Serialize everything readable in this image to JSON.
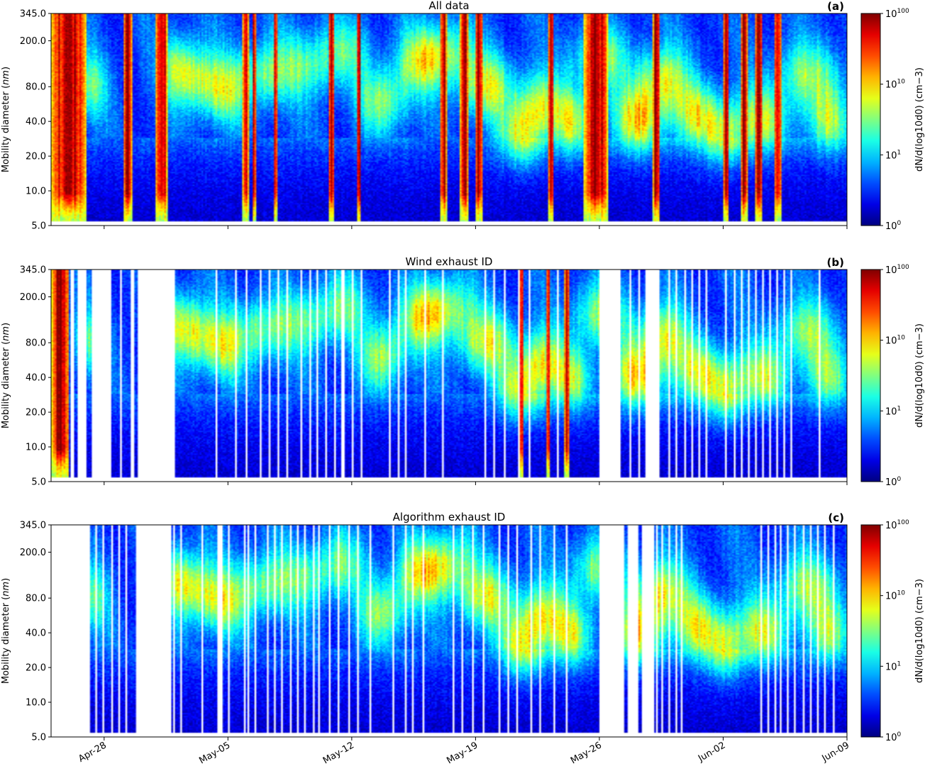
{
  "chart_data": {
    "type": "heatmap",
    "colormap": "jet",
    "x_axis": {
      "start": "2023-04-25",
      "end": "2023-06-09",
      "ticks": [
        {
          "date": "2023-04-28",
          "label": "Apr-28"
        },
        {
          "date": "2023-05-05",
          "label": "May-05"
        },
        {
          "date": "2023-05-12",
          "label": "May-12"
        },
        {
          "date": "2023-05-19",
          "label": "May-19"
        },
        {
          "date": "2023-05-26",
          "label": "May-26"
        },
        {
          "date": "2023-06-02",
          "label": "Jun-02"
        },
        {
          "date": "2023-06-09",
          "label": "Jun-09"
        }
      ]
    },
    "y_axis": {
      "label_prefix": "Mobility diameter (",
      "label_unit": "nm",
      "label_suffix": ")",
      "scale": "log",
      "range": [
        5.0,
        345.0
      ],
      "ticks": [
        {
          "value": 5.0,
          "label": "5.0"
        },
        {
          "value": 10.0,
          "label": "10.0"
        },
        {
          "value": 20.0,
          "label": "20.0"
        },
        {
          "value": 40.0,
          "label": "40.0"
        },
        {
          "value": 80.0,
          "label": "80.0"
        },
        {
          "value": 200.0,
          "label": "200.0"
        },
        {
          "value": 345.0,
          "label": "345.0"
        }
      ]
    },
    "colorbar": {
      "label": "dN/d(log10d0) (cm−3)",
      "scale": "log",
      "ticks": [
        {
          "value": 1,
          "base": "10",
          "exp": "0"
        },
        {
          "value": 10,
          "base": "10",
          "exp": "1"
        },
        {
          "value": 10000000000.0,
          "base": "10",
          "exp": "10"
        },
        {
          "value": 1e+100,
          "base": "10",
          "exp": "100"
        }
      ]
    },
    "panels": [
      {
        "title": "All data",
        "panel_label": "(a)",
        "gaps": [],
        "burst_days": [
          [
            0.0,
            2.0
          ],
          [
            4.1,
            4.6
          ],
          [
            5.9,
            6.6
          ],
          [
            10.8,
            11.2
          ],
          [
            11.4,
            11.6
          ],
          [
            12.6,
            12.8
          ],
          [
            15.7,
            16.0
          ],
          [
            17.3,
            17.5
          ],
          [
            22.0,
            22.4
          ],
          [
            23.1,
            23.6
          ],
          [
            24.0,
            24.4
          ],
          [
            28.1,
            28.4
          ],
          [
            30.1,
            31.5
          ],
          [
            34.0,
            34.4
          ],
          [
            38.0,
            38.3
          ],
          [
            39.0,
            39.4
          ],
          [
            39.8,
            40.2
          ],
          [
            40.9,
            41.3
          ]
        ],
        "white_zones": [
          [
            0,
            1.8,
            0.04
          ],
          [
            10.9,
            11.2,
            0.0
          ]
        ]
      },
      {
        "title": "Wind exhaust ID",
        "panel_label": "(b)",
        "gaps": [
          [
            1.1,
            1.3
          ],
          [
            1.5,
            2.0
          ],
          [
            2.3,
            3.4
          ],
          [
            3.9,
            4.0
          ],
          [
            4.5,
            4.7
          ],
          [
            4.9,
            7.0
          ],
          [
            9.3,
            9.4
          ],
          [
            10.4,
            10.5
          ],
          [
            11.0,
            11.1
          ],
          [
            11.8,
            11.9
          ],
          [
            12.3,
            12.4
          ],
          [
            12.8,
            12.9
          ],
          [
            13.3,
            13.4
          ],
          [
            14.1,
            14.2
          ],
          [
            14.6,
            14.7
          ],
          [
            15.0,
            15.1
          ],
          [
            15.5,
            15.6
          ],
          [
            16.0,
            16.1
          ],
          [
            16.4,
            16.6
          ],
          [
            17.0,
            17.1
          ],
          [
            17.5,
            17.6
          ],
          [
            19.1,
            19.2
          ],
          [
            19.6,
            19.7
          ],
          [
            20.0,
            20.1
          ],
          [
            21.1,
            21.2
          ],
          [
            22.1,
            22.2
          ],
          [
            24.5,
            24.6
          ],
          [
            25.0,
            25.1
          ],
          [
            25.6,
            25.7
          ],
          [
            26.4,
            26.5
          ],
          [
            27.0,
            27.1
          ],
          [
            28.6,
            28.7
          ],
          [
            31.0,
            32.2
          ],
          [
            32.7,
            32.8
          ],
          [
            33.2,
            33.3
          ],
          [
            33.6,
            34.4
          ],
          [
            34.9,
            35.0
          ],
          [
            35.3,
            35.4
          ],
          [
            35.8,
            35.9
          ],
          [
            36.2,
            36.3
          ],
          [
            36.6,
            36.7
          ],
          [
            37.0,
            37.1
          ],
          [
            38.1,
            38.2
          ],
          [
            38.6,
            38.7
          ],
          [
            39.0,
            39.1
          ],
          [
            39.4,
            39.5
          ],
          [
            39.8,
            39.9
          ],
          [
            40.2,
            40.3
          ],
          [
            40.6,
            40.7
          ],
          [
            41.0,
            41.1
          ],
          [
            41.4,
            41.5
          ],
          [
            41.8,
            41.9
          ],
          [
            43.4,
            43.5
          ]
        ],
        "burst_days": [
          [
            0.0,
            1.0
          ],
          [
            1.6,
            1.9
          ],
          [
            26.5,
            26.7
          ],
          [
            28.0,
            28.2
          ],
          [
            29.0,
            29.3
          ]
        ],
        "white_zones": []
      },
      {
        "title": "Algorithm exhaust ID",
        "panel_label": "(c)",
        "gaps": [
          [
            0.0,
            2.2
          ],
          [
            2.5,
            2.6
          ],
          [
            2.9,
            3.0
          ],
          [
            3.4,
            3.5
          ],
          [
            3.8,
            3.9
          ],
          [
            4.2,
            4.3
          ],
          [
            4.8,
            6.8
          ],
          [
            6.9,
            7.0
          ],
          [
            7.3,
            7.4
          ],
          [
            8.5,
            8.6
          ],
          [
            9.4,
            9.7
          ],
          [
            10.0,
            10.1
          ],
          [
            10.9,
            11.0
          ],
          [
            11.1,
            11.2
          ],
          [
            11.5,
            11.6
          ],
          [
            12.2,
            12.3
          ],
          [
            12.6,
            12.7
          ],
          [
            13.0,
            13.1
          ],
          [
            13.5,
            13.6
          ],
          [
            13.9,
            14.0
          ],
          [
            14.3,
            14.4
          ],
          [
            14.8,
            14.9
          ],
          [
            15.1,
            15.2
          ],
          [
            15.7,
            15.8
          ],
          [
            16.2,
            16.3
          ],
          [
            16.8,
            16.9
          ],
          [
            17.3,
            17.4
          ],
          [
            18.0,
            18.1
          ],
          [
            19.3,
            19.4
          ],
          [
            20.0,
            20.1
          ],
          [
            20.4,
            20.5
          ],
          [
            21.0,
            21.1
          ],
          [
            22.7,
            22.8
          ],
          [
            23.2,
            23.3
          ],
          [
            23.8,
            23.9
          ],
          [
            24.4,
            24.5
          ],
          [
            25.3,
            25.4
          ],
          [
            25.8,
            25.9
          ],
          [
            26.3,
            26.4
          ],
          [
            27.1,
            27.2
          ],
          [
            27.6,
            27.7
          ],
          [
            28.4,
            28.5
          ],
          [
            29.1,
            29.2
          ],
          [
            31.0,
            32.4
          ],
          [
            32.6,
            33.2
          ],
          [
            33.4,
            34.1
          ],
          [
            34.2,
            34.3
          ],
          [
            34.5,
            34.6
          ],
          [
            34.9,
            35.0
          ],
          [
            35.3,
            35.4
          ],
          [
            35.6,
            35.7
          ],
          [
            40.1,
            40.2
          ],
          [
            40.5,
            40.6
          ],
          [
            40.9,
            41.0
          ],
          [
            41.2,
            41.3
          ],
          [
            41.6,
            41.7
          ],
          [
            42.0,
            42.1
          ],
          [
            42.5,
            42.6
          ],
          [
            42.9,
            43.0
          ],
          [
            43.3,
            43.4
          ],
          [
            43.7,
            43.8
          ],
          [
            44.2,
            44.3
          ]
        ],
        "burst_days": [],
        "white_zones": []
      }
    ],
    "background_blobs": [
      {
        "center_day": 2.2,
        "d_nm": 80,
        "width_days": 1.0,
        "strength": 0.25
      },
      {
        "center_day": 7.2,
        "d_nm": 120,
        "width_days": 1.0,
        "strength": 0.28
      },
      {
        "center_day": 8.3,
        "d_nm": 90,
        "width_days": 1.3,
        "strength": 0.32
      },
      {
        "center_day": 9.8,
        "d_nm": 70,
        "width_days": 1.1,
        "strength": 0.28
      },
      {
        "center_day": 11.8,
        "d_nm": 100,
        "width_days": 1.4,
        "strength": 0.3
      },
      {
        "center_day": 14.3,
        "d_nm": 120,
        "width_days": 1.6,
        "strength": 0.25
      },
      {
        "center_day": 16.5,
        "d_nm": 160,
        "width_days": 1.4,
        "strength": 0.23
      },
      {
        "center_day": 18.8,
        "d_nm": 60,
        "width_days": 1.3,
        "strength": 0.33
      },
      {
        "center_day": 20.9,
        "d_nm": 130,
        "width_days": 1.4,
        "strength": 0.33
      },
      {
        "center_day": 22.4,
        "d_nm": 160,
        "width_days": 1.5,
        "strength": 0.3
      },
      {
        "center_day": 24.6,
        "d_nm": 80,
        "width_days": 1.5,
        "strength": 0.37
      },
      {
        "center_day": 26.6,
        "d_nm": 30,
        "width_days": 1.2,
        "strength": 0.35
      },
      {
        "center_day": 27.7,
        "d_nm": 55,
        "width_days": 1.3,
        "strength": 0.35
      },
      {
        "center_day": 29.5,
        "d_nm": 38,
        "width_days": 1.1,
        "strength": 0.33
      },
      {
        "center_day": 31.0,
        "d_nm": 140,
        "width_days": 1.5,
        "strength": 0.33
      },
      {
        "center_day": 33.2,
        "d_nm": 40,
        "width_days": 1.4,
        "strength": 0.43
      },
      {
        "center_day": 34.5,
        "d_nm": 90,
        "width_days": 1.4,
        "strength": 0.4
      },
      {
        "center_day": 36.5,
        "d_nm": 45,
        "width_days": 1.3,
        "strength": 0.35
      },
      {
        "center_day": 38.1,
        "d_nm": 30,
        "width_days": 1.1,
        "strength": 0.33
      },
      {
        "center_day": 40.3,
        "d_nm": 40,
        "width_days": 1.5,
        "strength": 0.35
      },
      {
        "center_day": 42.7,
        "d_nm": 100,
        "width_days": 1.8,
        "strength": 0.3
      },
      {
        "center_day": 44.0,
        "d_nm": 40,
        "width_days": 1.2,
        "strength": 0.3
      }
    ]
  }
}
